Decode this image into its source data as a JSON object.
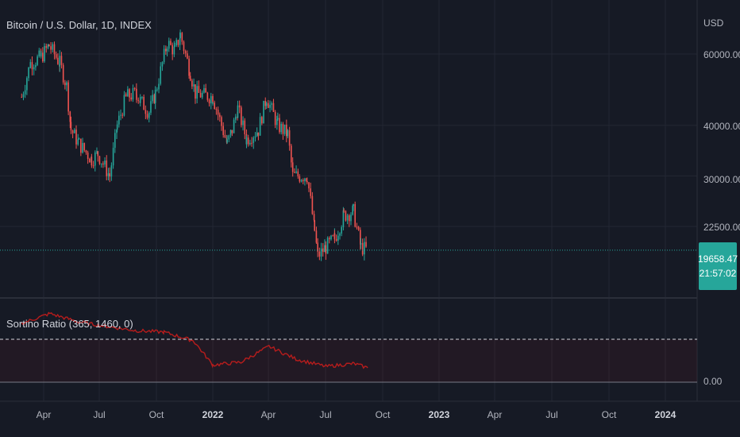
{
  "title": "Bitcoin / U.S. Dollar, 1D, INDEX",
  "indicator_title": "Sortino Ratio (365, 1460, 0)",
  "y_unit": "USD",
  "price_ticks": [
    "60000.00",
    "40000.00",
    "30000.00",
    "22500.00"
  ],
  "indicator_ticks": [
    "0.00"
  ],
  "x_ticks": [
    "Apr",
    "Jul",
    "Oct",
    "2022",
    "Apr",
    "Jul",
    "Oct",
    "2023",
    "Apr",
    "Jul",
    "Oct",
    "2024"
  ],
  "last_price": "19658.47",
  "countdown": "21:57:02",
  "colors": {
    "background": "#161a25",
    "up": "#26a69a",
    "down": "#ef5350",
    "indicator_line": "#b71c1c",
    "grid": "#232733"
  },
  "chart_data": [
    {
      "type": "candlestick",
      "title": "Bitcoin / U.S. Dollar, 1D, INDEX",
      "ylabel": "USD",
      "y_scale": "log",
      "x": [
        "2021-03-01",
        "2021-03-15",
        "2021-04-01",
        "2021-04-14",
        "2021-05-01",
        "2021-05-12",
        "2021-05-19",
        "2021-06-01",
        "2021-06-21",
        "2021-07-01",
        "2021-07-20",
        "2021-08-01",
        "2021-08-15",
        "2021-09-01",
        "2021-09-07",
        "2021-09-21",
        "2021-10-01",
        "2021-10-20",
        "2021-11-01",
        "2021-11-10",
        "2021-11-26",
        "2021-12-04",
        "2022-01-01",
        "2022-01-24",
        "2022-02-01",
        "2022-02-10",
        "2022-02-24",
        "2022-03-15",
        "2022-03-28",
        "2022-04-15",
        "2022-05-01",
        "2022-05-09",
        "2022-05-20",
        "2022-06-01",
        "2022-06-13",
        "2022-06-18",
        "2022-07-01",
        "2022-07-15",
        "2022-07-30",
        "2022-08-14",
        "2022-08-26",
        "2022-09-06"
      ],
      "close": [
        47000,
        57000,
        59000,
        63000,
        57000,
        50000,
        39000,
        36000,
        33000,
        34000,
        30000,
        40000,
        47000,
        48000,
        46000,
        43000,
        48000,
        64000,
        61000,
        67000,
        54000,
        48000,
        47000,
        36000,
        39000,
        44000,
        37000,
        39000,
        47000,
        40000,
        38000,
        30000,
        30000,
        30000,
        22000,
        19000,
        20000,
        21000,
        24000,
        24500,
        20000,
        19658
      ]
    },
    {
      "type": "line",
      "title": "Sortino Ratio (365, 1460, 0)",
      "x": [
        "2021-03-01",
        "2021-04-15",
        "2021-06-01",
        "2021-07-15",
        "2021-09-01",
        "2021-10-15",
        "2021-12-01",
        "2022-01-01",
        "2022-02-15",
        "2022-04-01",
        "2022-05-15",
        "2022-07-01",
        "2022-08-15",
        "2022-09-06"
      ],
      "values": [
        4.1,
        4.8,
        4.2,
        3.9,
        3.6,
        3.5,
        2.9,
        1.2,
        1.4,
        2.5,
        1.6,
        1.1,
        1.3,
        1.0
      ],
      "ylim": [
        0,
        5.5
      ],
      "reference_line": 3.0
    }
  ]
}
